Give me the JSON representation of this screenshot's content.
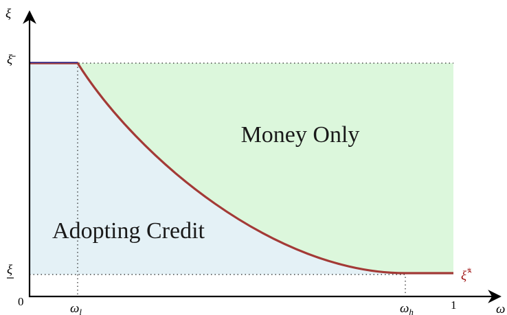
{
  "axes": {
    "y_label": "ξ",
    "x_label": "ω",
    "origin": "0",
    "y_ticks": {
      "upper": "ξ̄",
      "lower": "ξ"
    },
    "x_ticks": {
      "low": {
        "symbol": "ω",
        "subscript": "l"
      },
      "high": {
        "symbol": "ω",
        "subscript": "h"
      },
      "one": "1"
    }
  },
  "regions": {
    "upper": "Money Only",
    "lower": "Adopting Credit"
  },
  "curve_label": {
    "symbol": "ξ̂",
    "superscript": "*"
  }
}
